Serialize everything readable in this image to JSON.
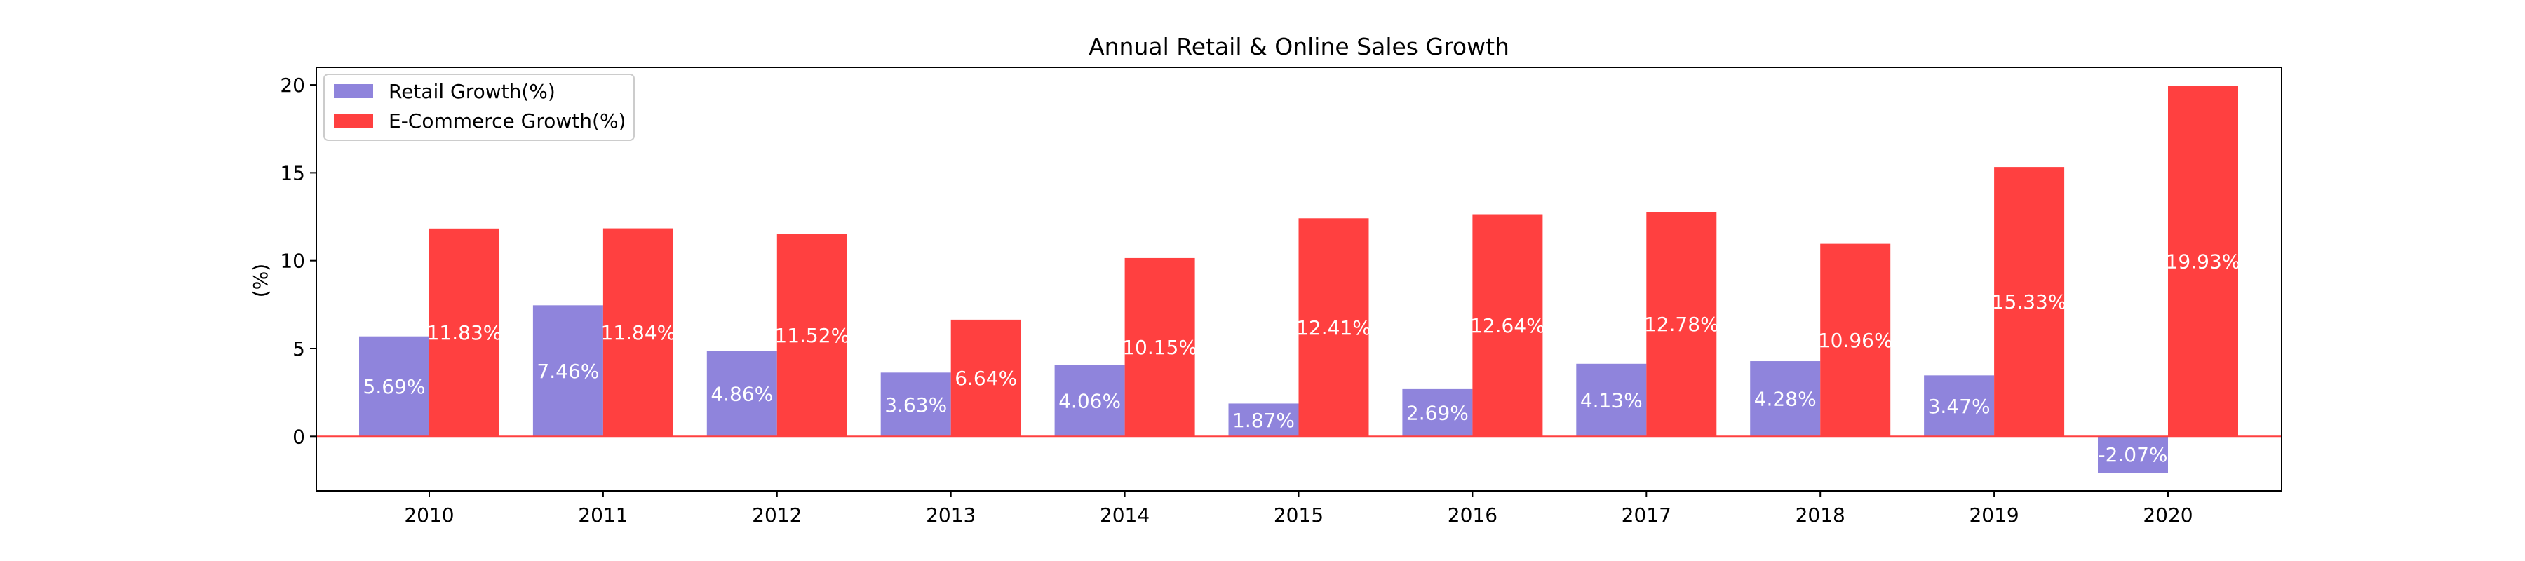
{
  "chart_data": {
    "type": "bar",
    "title": "Annual Retail & Online Sales Growth",
    "xlabel": "",
    "ylabel": "(%)",
    "categories": [
      "2010",
      "2011",
      "2012",
      "2013",
      "2014",
      "2015",
      "2016",
      "2017",
      "2018",
      "2019",
      "2020"
    ],
    "series": [
      {
        "name": "Retail Growth(%)",
        "color": "#8f84dc",
        "values": [
          5.69,
          7.46,
          4.86,
          3.63,
          4.06,
          1.87,
          2.69,
          4.13,
          4.28,
          3.47,
          -2.07
        ],
        "labels": [
          "5.69%",
          "7.46%",
          "4.86%",
          "3.63%",
          "4.06%",
          "1.87%",
          "2.69%",
          "4.13%",
          "4.28%",
          "3.47%",
          "-2.07%"
        ]
      },
      {
        "name": "E-Commerce Growth(%)",
        "color": "#ff4040",
        "values": [
          11.83,
          11.84,
          11.52,
          6.64,
          10.15,
          12.41,
          12.64,
          12.78,
          10.96,
          15.33,
          19.93
        ],
        "labels": [
          "11.83%",
          "11.84%",
          "11.52%",
          "6.64%",
          "10.15%",
          "12.41%",
          "12.64%",
          "12.78%",
          "10.96%",
          "15.33%",
          "19.93%"
        ]
      }
    ],
    "yticks": [
      0,
      5,
      10,
      15,
      20
    ],
    "ytick_labels": [
      "0",
      "5",
      "10",
      "15",
      "20"
    ],
    "ylim": [
      -3.1,
      21.0
    ],
    "zero_line_color": "#ff4040",
    "legend_position": "upper-left",
    "grid": false
  }
}
